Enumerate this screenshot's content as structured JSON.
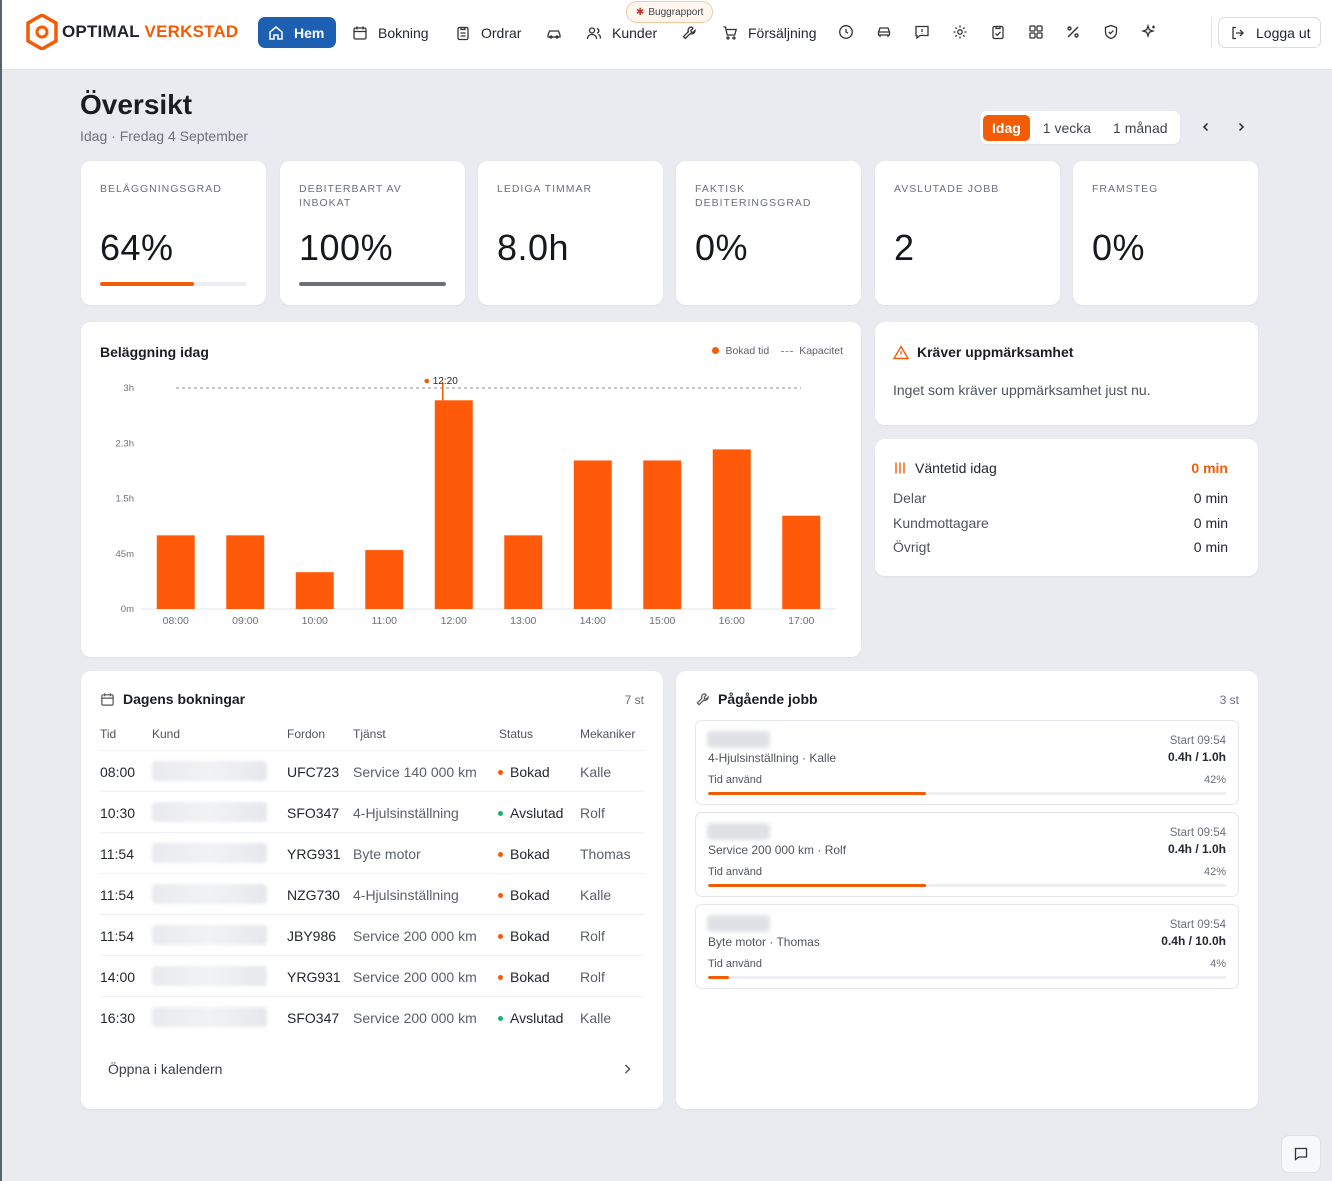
{
  "brand": {
    "part1": "OPTIMAL",
    "part2": "VERKSTAD",
    "accent": "#f25c05",
    "nav_active": "#1d5fb1"
  },
  "nav": {
    "items": [
      {
        "label": "Hem",
        "icon": "home-icon"
      },
      {
        "label": "Bokning",
        "icon": "calendar-icon"
      },
      {
        "label": "Ordrar",
        "icon": "clipboard-icon"
      },
      {
        "label": "",
        "icon": "car-icon"
      },
      {
        "label": "Kunder",
        "icon": "users-icon"
      },
      {
        "label": "",
        "icon": "wrench-icon"
      },
      {
        "label": "Försäljning",
        "icon": "cart-icon"
      }
    ],
    "icon_buttons": [
      "clock-icon",
      "vehicle-icon",
      "message-icon",
      "settings-icon",
      "checklist-icon",
      "grid-icon",
      "percent-icon",
      "shield-icon",
      "sparkle-icon"
    ],
    "bug_report": "Buggrapport",
    "logout": "Logga ut"
  },
  "header": {
    "title": "Översikt",
    "subtitle": "Idag · Fredag 4 September",
    "ranges": [
      "Idag",
      "1 vecka",
      "1 månad"
    ],
    "active_range": "Idag"
  },
  "kpis": [
    {
      "label": "BELÄGGNINGSGRAD",
      "value": "64%",
      "progress": 0.64,
      "bar_color": "#f25c05"
    },
    {
      "label": "DEBITERBART AV INBOKAT",
      "value": "100%",
      "progress": 1.0,
      "bar_color": "#6b7079"
    },
    {
      "label": "LEDIGA TIMMAR",
      "value": "8.0h"
    },
    {
      "label": "FAKTISK DEBITERINGSGRAD",
      "value": "0%"
    },
    {
      "label": "AVSLUTADE JOBB",
      "value": "2"
    },
    {
      "label": "FRAMSTEG",
      "value": "0%"
    }
  ],
  "occupancy": {
    "title": "Beläggning idag",
    "legend_booked": "Bokad tid",
    "legend_capacity": "Kapacitet",
    "now_label": "12:20"
  },
  "chart_data": {
    "type": "bar",
    "categories": [
      "08:00",
      "09:00",
      "10:00",
      "11:00",
      "12:00",
      "13:00",
      "14:00",
      "15:00",
      "16:00",
      "17:00"
    ],
    "series": [
      {
        "name": "Bokad tid",
        "values": [
          60,
          60,
          30,
          48,
          170,
          60,
          121,
          121,
          130,
          76
        ]
      }
    ],
    "capacity": 180,
    "y_ticks": [
      "0m",
      "45m",
      "1.5h",
      "2.3h",
      "3h"
    ],
    "ylim": [
      0,
      180
    ],
    "now_marker": "12:20",
    "grid": false,
    "legend_position": "top-right",
    "bar_color": "#ff5a0a"
  },
  "attention": {
    "title": "Kräver uppmärksamhet",
    "message": "Inget som kräver uppmärksamhet just nu."
  },
  "wait": {
    "title": "Väntetid idag",
    "total": "0 min",
    "rows": [
      {
        "label": "Delar",
        "value": "0 min"
      },
      {
        "label": "Kundmottagare",
        "value": "0 min"
      },
      {
        "label": "Övrigt",
        "value": "0 min"
      }
    ]
  },
  "bookings": {
    "title": "Dagens bokningar",
    "count": "7 st",
    "columns": [
      "Tid",
      "Kund",
      "Fordon",
      "Tjänst",
      "Status",
      "Mekaniker"
    ],
    "rows": [
      {
        "time": "08:00",
        "reg": "UFC723",
        "service": "Service 140 000 km",
        "status": "Bokad",
        "mechanic": "Kalle"
      },
      {
        "time": "10:30",
        "reg": "SFO347",
        "service": "4-Hjulsinställning",
        "status": "Avslutad",
        "mechanic": "Rolf"
      },
      {
        "time": "11:54",
        "reg": "YRG931",
        "service": "Byte motor",
        "status": "Bokad",
        "mechanic": "Thomas"
      },
      {
        "time": "11:54",
        "reg": "NZG730",
        "service": "4-Hjulsinställning",
        "status": "Bokad",
        "mechanic": "Kalle"
      },
      {
        "time": "11:54",
        "reg": "JBY986",
        "service": "Service 200 000 km",
        "status": "Bokad",
        "mechanic": "Rolf"
      },
      {
        "time": "14:00",
        "reg": "YRG931",
        "service": "Service 200 000 km",
        "status": "Bokad",
        "mechanic": "Rolf"
      },
      {
        "time": "16:30",
        "reg": "SFO347",
        "service": "Service 200 000 km",
        "status": "Avslutad",
        "mechanic": "Kalle"
      }
    ],
    "status_colors": {
      "Bokad": "#f25c05",
      "Avslutad": "#16b36c"
    },
    "open_calendar": "Öppna i kalendern"
  },
  "jobs": {
    "title": "Pågående jobb",
    "count": "3 st",
    "items": [
      {
        "subtitle": "4-Hjulsinställning · Kalle",
        "start": "Start 09:54",
        "hours": "0.4h / 1.0h",
        "time_label": "Tid använd",
        "percent": "42%",
        "progress": 0.42
      },
      {
        "subtitle": "Service 200 000 km · Rolf",
        "start": "Start 09:54",
        "hours": "0.4h / 1.0h",
        "time_label": "Tid använd",
        "percent": "42%",
        "progress": 0.42
      },
      {
        "subtitle": "Byte motor · Thomas",
        "start": "Start 09:54",
        "hours": "0.4h / 10.0h",
        "time_label": "Tid använd",
        "percent": "4%",
        "progress": 0.04
      }
    ]
  }
}
